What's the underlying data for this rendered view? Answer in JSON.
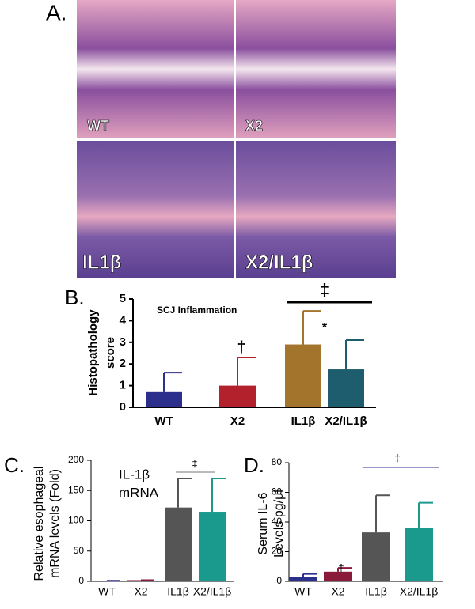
{
  "panel_a": {
    "panel": "A.",
    "images": [
      {
        "label": "WT"
      },
      {
        "label": "X2"
      },
      {
        "label": "IL1β"
      },
      {
        "label": "X2/IL1β"
      }
    ]
  },
  "chart_data": [
    {
      "type": "bar",
      "panel": "B.",
      "title": [
        "SCJ Inflammation"
      ],
      "y_label": [
        "Histopathology",
        "score"
      ],
      "categories": [
        "WT",
        "X2",
        "IL1β",
        "X2/IL1β"
      ],
      "series": [
        {
          "values": [
            0.7,
            1.0,
            2.9,
            1.75
          ],
          "errors": [
            0.9,
            1.3,
            1.55,
            1.35
          ],
          "colors": [
            "#2d2f8c",
            "#b3222c",
            "#a3742c",
            "#1e5d6d"
          ]
        }
      ],
      "ylim": [
        0,
        5
      ],
      "yticks": [
        0,
        1,
        2,
        3,
        4,
        5
      ],
      "annotations": [
        "†",
        "*",
        "‡"
      ]
    },
    {
      "type": "bar",
      "panel": "C.",
      "title": [
        "IL-1β",
        "mRNA"
      ],
      "y_label": [
        "Relative esophageal",
        "mRNA levels  (Fold)"
      ],
      "categories": [
        "WT",
        "X2",
        "IL1β",
        "X2/IL1β"
      ],
      "series": [
        {
          "values": [
            1,
            2,
            122,
            115
          ],
          "errors": [
            0,
            0,
            48,
            55
          ],
          "colors": [
            "#2d2f8c",
            "#8a1a3a",
            "#555555",
            "#1a9a8c"
          ]
        }
      ],
      "ylim": [
        0,
        200
      ],
      "yticks": [
        0,
        50,
        100,
        150,
        200
      ],
      "annotations": [
        "‡"
      ]
    },
    {
      "type": "bar",
      "panel": "D.",
      "title": [],
      "y_label": [
        "Serum IL-6",
        "Levels pg/μl"
      ],
      "categories": [
        "WT",
        "X2",
        "IL1β",
        "X2/IL1β"
      ],
      "series": [
        {
          "values": [
            3,
            6.5,
            33,
            36
          ],
          "errors": [
            2,
            2.5,
            25,
            17
          ],
          "colors": [
            "#2d2f8c",
            "#8a1a3a",
            "#555555",
            "#1a9a8c"
          ]
        }
      ],
      "ylim": [
        0,
        80
      ],
      "yticks": [
        0,
        20,
        40,
        60,
        80
      ],
      "annotations": [
        "†",
        "‡"
      ]
    }
  ]
}
